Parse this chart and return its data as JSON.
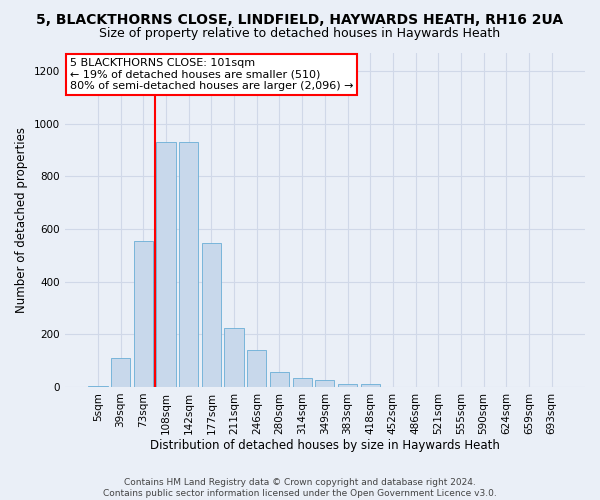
{
  "title": "5, BLACKTHORNS CLOSE, LINDFIELD, HAYWARDS HEATH, RH16 2UA",
  "subtitle": "Size of property relative to detached houses in Haywards Heath",
  "xlabel": "Distribution of detached houses by size in Haywards Heath",
  "ylabel": "Number of detached properties",
  "footer_line1": "Contains HM Land Registry data © Crown copyright and database right 2024.",
  "footer_line2": "Contains public sector information licensed under the Open Government Licence v3.0.",
  "bar_labels": [
    "5sqm",
    "39sqm",
    "73sqm",
    "108sqm",
    "142sqm",
    "177sqm",
    "211sqm",
    "246sqm",
    "280sqm",
    "314sqm",
    "349sqm",
    "383sqm",
    "418sqm",
    "452sqm",
    "486sqm",
    "521sqm",
    "555sqm",
    "590sqm",
    "624sqm",
    "659sqm",
    "693sqm"
  ],
  "bar_values": [
    5,
    110,
    555,
    930,
    930,
    545,
    225,
    140,
    55,
    35,
    25,
    10,
    10,
    0,
    0,
    0,
    0,
    0,
    0,
    0,
    0
  ],
  "bar_color": "#c8d8eb",
  "bar_edgecolor": "#6aaed6",
  "grid_color": "#d0d8e8",
  "annotation_text": "5 BLACKTHORNS CLOSE: 101sqm\n← 19% of detached houses are smaller (510)\n80% of semi-detached houses are larger (2,096) →",
  "annotation_box_edgecolor": "red",
  "vline_color": "red",
  "ylim": [
    0,
    1270
  ],
  "yticks": [
    0,
    200,
    400,
    600,
    800,
    1000,
    1200
  ],
  "bg_color": "#eaeff7",
  "plot_bg_color": "#eaeff7",
  "title_fontsize": 10,
  "subtitle_fontsize": 9,
  "ylabel_fontsize": 8.5,
  "xlabel_fontsize": 8.5,
  "tick_fontsize": 7.5,
  "footer_fontsize": 6.5,
  "annotation_fontsize": 8
}
